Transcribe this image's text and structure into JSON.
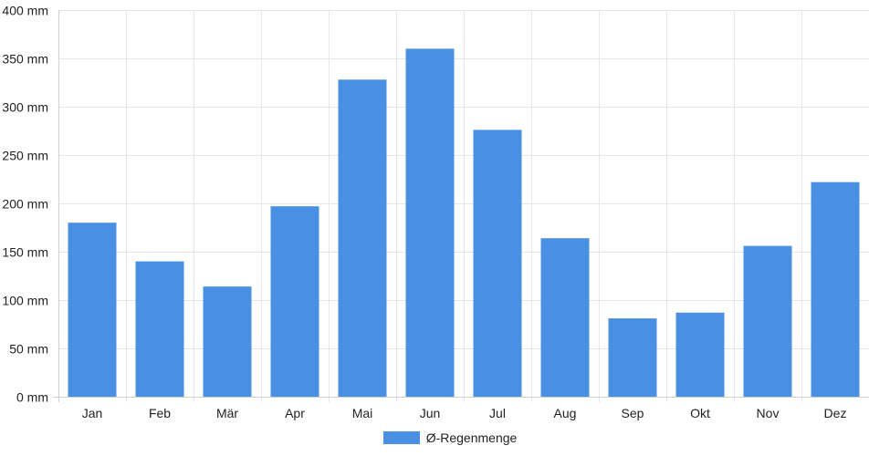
{
  "chart_data": {
    "type": "bar",
    "categories": [
      "Jan",
      "Feb",
      "Mär",
      "Apr",
      "Mai",
      "Jun",
      "Jul",
      "Aug",
      "Sep",
      "Okt",
      "Nov",
      "Dez"
    ],
    "series": [
      {
        "name": "Ø-Regenmenge",
        "values": [
          180,
          140,
          114,
          197,
          328,
          360,
          276,
          164,
          81,
          87,
          156,
          222
        ],
        "color": "#4a90e2"
      }
    ],
    "y_unit": "mm",
    "y_ticks": [
      "0 mm",
      "50 mm",
      "100 mm",
      "150 mm",
      "200 mm",
      "250 mm",
      "300 mm",
      "350 mm",
      "400 mm"
    ],
    "ylim": [
      0,
      400
    ],
    "y_step": 50,
    "grid": true,
    "legend_position": "bottom-center",
    "grid_color": "#e6e6e6",
    "axis_color": "#d0d0d0"
  }
}
